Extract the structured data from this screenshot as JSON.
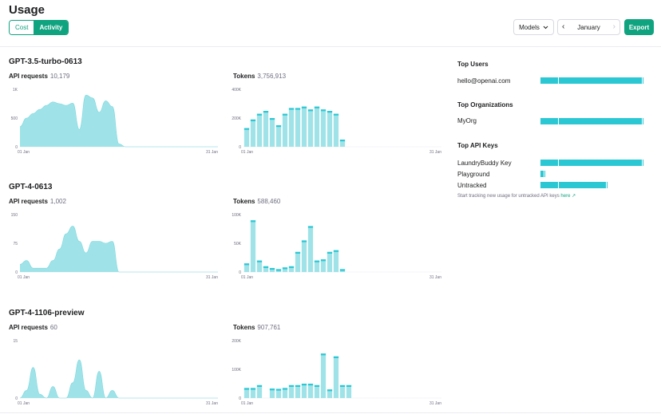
{
  "header": {
    "title": "Usage",
    "tabs": [
      {
        "label": "Cost",
        "active": false
      },
      {
        "label": "Activity",
        "active": true
      }
    ],
    "models_dropdown": "Models",
    "month": "January",
    "export_label": "Export"
  },
  "colors": {
    "accent": "#10a37f",
    "chart_fill": "#9fe3e8",
    "chart_dark": "#2bc8d4"
  },
  "models": [
    {
      "name": "GPT-3.5-turbo-0613",
      "requests_label": "API requests",
      "requests_total": "10,179",
      "tokens_label": "Tokens",
      "tokens_total": "3,756,913"
    },
    {
      "name": "GPT-4-0613",
      "requests_label": "API requests",
      "requests_total": "1,002",
      "tokens_label": "Tokens",
      "tokens_total": "588,460"
    },
    {
      "name": "GPT-4-1106-preview",
      "requests_label": "API requests",
      "requests_total": "60",
      "tokens_label": "Tokens",
      "tokens_total": "907,761"
    }
  ],
  "chart_data": [
    {
      "type": "area",
      "id": "req0",
      "ylim": [
        0,
        1000
      ],
      "y_ticks": [
        "1K",
        "500",
        "0"
      ],
      "y_tick_values": [
        1000,
        500,
        0
      ],
      "x_ticks": [
        "01 Jan",
        "31 Jan"
      ],
      "x": [
        1,
        2,
        3,
        4,
        5,
        6,
        7,
        8,
        9,
        10,
        11,
        12,
        13,
        14,
        15,
        16,
        17,
        18,
        19,
        20,
        21,
        22,
        23,
        24,
        25,
        26,
        27,
        28,
        29,
        30,
        31
      ],
      "values": [
        350,
        500,
        580,
        650,
        720,
        780,
        750,
        720,
        760,
        300,
        900,
        850,
        600,
        800,
        700,
        50,
        0,
        0,
        0,
        0,
        0,
        0,
        0,
        0,
        0,
        0,
        0,
        0,
        0,
        0,
        0
      ]
    },
    {
      "type": "bar",
      "id": "tok0",
      "ylim": [
        0,
        400000
      ],
      "y_ticks": [
        "400K",
        "200K",
        "0"
      ],
      "y_tick_values": [
        400000,
        200000,
        0
      ],
      "x_ticks": [
        "01 Jan",
        "31 Jan"
      ],
      "x": [
        1,
        2,
        3,
        4,
        5,
        6,
        7,
        8,
        9,
        10,
        11,
        12,
        13,
        14,
        15,
        16,
        17,
        18,
        19,
        20,
        21,
        22,
        23,
        24,
        25,
        26,
        27,
        28,
        29,
        30,
        31
      ],
      "values": [
        130000,
        190000,
        230000,
        250000,
        200000,
        150000,
        230000,
        270000,
        270000,
        280000,
        260000,
        280000,
        260000,
        250000,
        230000,
        50000,
        0,
        0,
        0,
        0,
        0,
        0,
        0,
        0,
        0,
        0,
        0,
        0,
        0,
        0,
        0
      ]
    },
    {
      "type": "area",
      "id": "req1",
      "ylim": [
        0,
        150
      ],
      "y_ticks": [
        "150",
        "75",
        "0"
      ],
      "y_tick_values": [
        150,
        75,
        0
      ],
      "x_ticks": [
        "01 Jan",
        "31 Jan"
      ],
      "x": [
        1,
        2,
        3,
        4,
        5,
        6,
        7,
        8,
        9,
        10,
        11,
        12,
        13,
        14,
        15,
        16,
        17,
        18,
        19,
        20,
        21,
        22,
        23,
        24,
        25,
        26,
        27,
        28,
        29,
        30,
        31
      ],
      "values": [
        20,
        30,
        10,
        10,
        10,
        30,
        60,
        100,
        120,
        80,
        50,
        80,
        80,
        75,
        80,
        0,
        0,
        0,
        0,
        0,
        0,
        0,
        0,
        0,
        0,
        0,
        0,
        0,
        0,
        0,
        0
      ]
    },
    {
      "type": "bar",
      "id": "tok1",
      "ylim": [
        0,
        100000
      ],
      "y_ticks": [
        "100K",
        "50K",
        "0"
      ],
      "y_tick_values": [
        100000,
        50000,
        0
      ],
      "x_ticks": [
        "01 Jan",
        "31 Jan"
      ],
      "x": [
        1,
        2,
        3,
        4,
        5,
        6,
        7,
        8,
        9,
        10,
        11,
        12,
        13,
        14,
        15,
        16,
        17,
        18,
        19,
        20,
        21,
        22,
        23,
        24,
        25,
        26,
        27,
        28,
        29,
        30,
        31
      ],
      "values": [
        15000,
        90000,
        20000,
        10000,
        7000,
        5000,
        8000,
        10000,
        35000,
        55000,
        80000,
        20000,
        22000,
        35000,
        38000,
        5000,
        0,
        0,
        0,
        0,
        0,
        0,
        0,
        0,
        0,
        0,
        0,
        0,
        0,
        0,
        0
      ]
    },
    {
      "type": "area",
      "id": "req2",
      "ylim": [
        0,
        15
      ],
      "y_ticks": [
        "15",
        "0"
      ],
      "y_tick_values": [
        15,
        0
      ],
      "x_ticks": [
        "01 Jan",
        "31 Jan"
      ],
      "x": [
        1,
        2,
        3,
        4,
        5,
        6,
        7,
        8,
        9,
        10,
        11,
        12,
        13,
        14,
        15,
        16,
        17,
        18,
        19,
        20,
        21,
        22,
        23,
        24,
        25,
        26,
        27,
        28,
        29,
        30,
        31
      ],
      "values": [
        0,
        2,
        8,
        1,
        0,
        3,
        0,
        0,
        4,
        10,
        2,
        0,
        7,
        0,
        2,
        0,
        0,
        0,
        0,
        0,
        0,
        0,
        0,
        0,
        0,
        0,
        0,
        0,
        0,
        0,
        0
      ]
    },
    {
      "type": "bar",
      "id": "tok2",
      "ylim": [
        0,
        200000
      ],
      "y_ticks": [
        "200K",
        "100K",
        "0"
      ],
      "y_tick_values": [
        200000,
        100000,
        0
      ],
      "x_ticks": [
        "01 Jan",
        "31 Jan"
      ],
      "x": [
        1,
        2,
        3,
        4,
        5,
        6,
        7,
        8,
        9,
        10,
        11,
        12,
        13,
        14,
        15,
        16,
        17,
        18,
        19,
        20,
        21,
        22,
        23,
        24,
        25,
        26,
        27,
        28,
        29,
        30,
        31
      ],
      "values": [
        35000,
        35000,
        45000,
        0,
        33000,
        32000,
        35000,
        45000,
        45000,
        50000,
        50000,
        45000,
        155000,
        30000,
        145000,
        45000,
        45000,
        0,
        0,
        0,
        0,
        0,
        0,
        0,
        0,
        0,
        0,
        0,
        0,
        0,
        0
      ]
    }
  ],
  "sidebar": {
    "top_users": {
      "heading": "Top Users",
      "rows": [
        {
          "label": "hello@openai.com",
          "fraction": 1.0
        }
      ]
    },
    "top_orgs": {
      "heading": "Top Organizations",
      "rows": [
        {
          "label": "MyOrg",
          "fraction": 1.0
        }
      ]
    },
    "top_keys": {
      "heading": "Top API Keys",
      "rows": [
        {
          "label": "LaundryBuddy Key",
          "fraction": 1.0
        },
        {
          "label": "Playground",
          "fraction": 0.05
        },
        {
          "label": "Untracked",
          "fraction": 0.65
        }
      ],
      "note": "Start tracking new usage for untracked API keys ",
      "note_link": "here ↗"
    }
  }
}
